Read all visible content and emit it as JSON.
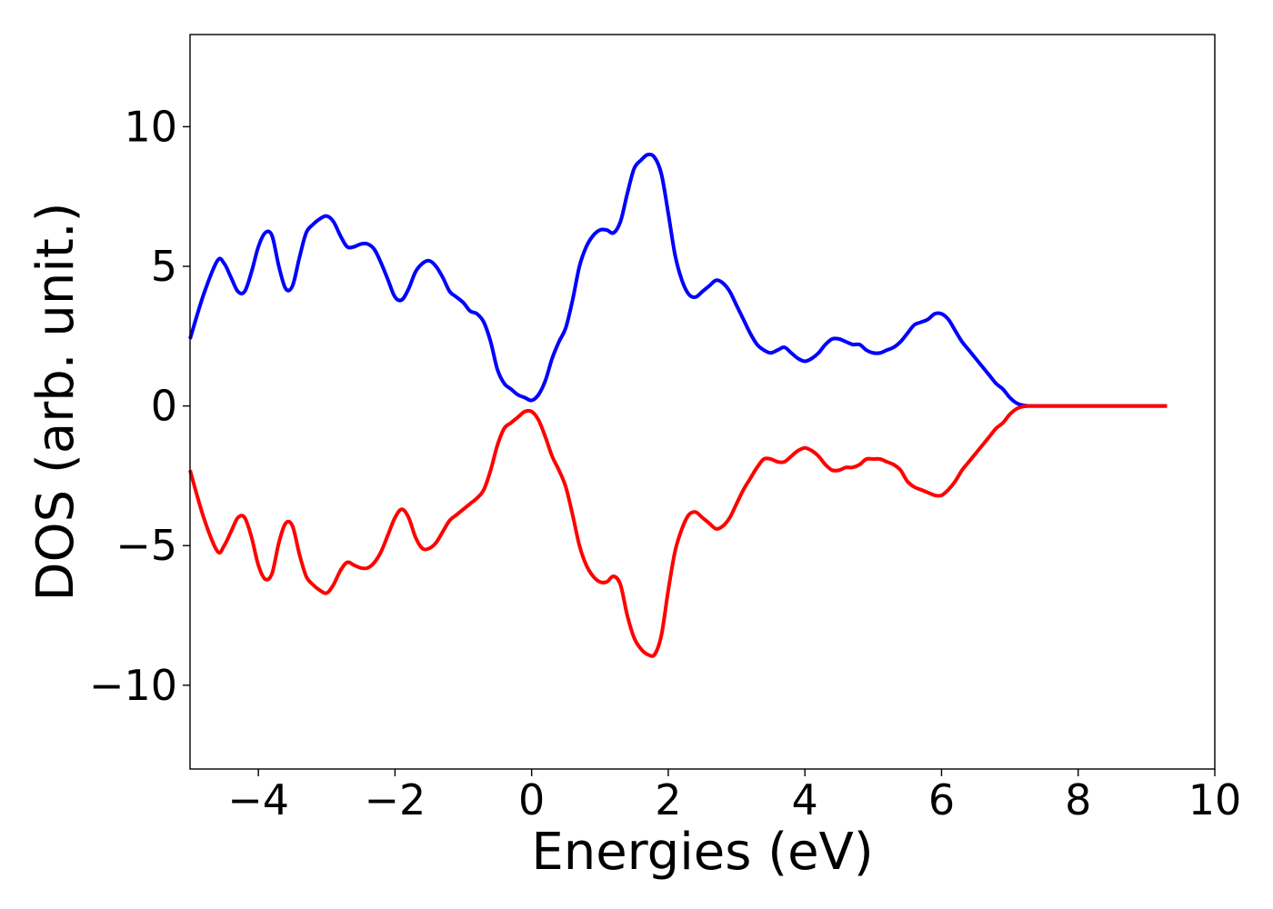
{
  "chart_data": {
    "type": "line",
    "title": "",
    "xlabel": "Energies (eV)",
    "ylabel": "DOS (arb. unit.)",
    "xlim": [
      -5,
      10
    ],
    "ylim": [
      -13,
      13.3
    ],
    "grid": false,
    "legend": "none",
    "x_ticks": [
      -4,
      -2,
      0,
      2,
      4,
      6,
      8,
      10
    ],
    "x_tick_labels": [
      "−4",
      "−2",
      "0",
      "2",
      "4",
      "6",
      "8",
      "10"
    ],
    "y_ticks": [
      -10,
      -5,
      0,
      5,
      10
    ],
    "y_tick_labels": [
      "−10",
      "−5",
      "0",
      "5",
      "10"
    ],
    "series": [
      {
        "color": "#0000ff",
        "points": [
          [
            -5.0,
            2.4
          ],
          [
            -4.8,
            4.0
          ],
          [
            -4.6,
            5.2
          ],
          [
            -4.5,
            5.1
          ],
          [
            -4.4,
            4.6
          ],
          [
            -4.3,
            4.1
          ],
          [
            -4.2,
            4.1
          ],
          [
            -4.1,
            4.8
          ],
          [
            -4.0,
            5.7
          ],
          [
            -3.9,
            6.2
          ],
          [
            -3.8,
            6.1
          ],
          [
            -3.7,
            5.0
          ],
          [
            -3.6,
            4.2
          ],
          [
            -3.5,
            4.3
          ],
          [
            -3.4,
            5.3
          ],
          [
            -3.3,
            6.2
          ],
          [
            -3.2,
            6.5
          ],
          [
            -3.1,
            6.7
          ],
          [
            -3.0,
            6.8
          ],
          [
            -2.9,
            6.6
          ],
          [
            -2.8,
            6.1
          ],
          [
            -2.7,
            5.7
          ],
          [
            -2.6,
            5.7
          ],
          [
            -2.5,
            5.8
          ],
          [
            -2.4,
            5.8
          ],
          [
            -2.3,
            5.6
          ],
          [
            -2.2,
            5.1
          ],
          [
            -2.1,
            4.5
          ],
          [
            -2.0,
            3.9
          ],
          [
            -1.9,
            3.8
          ],
          [
            -1.8,
            4.2
          ],
          [
            -1.7,
            4.8
          ],
          [
            -1.6,
            5.1
          ],
          [
            -1.5,
            5.2
          ],
          [
            -1.4,
            5.0
          ],
          [
            -1.3,
            4.6
          ],
          [
            -1.2,
            4.1
          ],
          [
            -1.1,
            3.9
          ],
          [
            -1.0,
            3.7
          ],
          [
            -0.9,
            3.4
          ],
          [
            -0.8,
            3.3
          ],
          [
            -0.7,
            3.0
          ],
          [
            -0.6,
            2.3
          ],
          [
            -0.5,
            1.3
          ],
          [
            -0.4,
            0.8
          ],
          [
            -0.3,
            0.6
          ],
          [
            -0.2,
            0.4
          ],
          [
            -0.1,
            0.3
          ],
          [
            0.0,
            0.2
          ],
          [
            0.1,
            0.4
          ],
          [
            0.2,
            0.9
          ],
          [
            0.3,
            1.7
          ],
          [
            0.4,
            2.3
          ],
          [
            0.5,
            2.8
          ],
          [
            0.6,
            3.8
          ],
          [
            0.7,
            5.0
          ],
          [
            0.8,
            5.7
          ],
          [
            0.9,
            6.1
          ],
          [
            1.0,
            6.3
          ],
          [
            1.1,
            6.3
          ],
          [
            1.2,
            6.2
          ],
          [
            1.3,
            6.6
          ],
          [
            1.4,
            7.6
          ],
          [
            1.5,
            8.5
          ],
          [
            1.6,
            8.8
          ],
          [
            1.7,
            9.0
          ],
          [
            1.8,
            8.9
          ],
          [
            1.9,
            8.3
          ],
          [
            2.0,
            6.9
          ],
          [
            2.1,
            5.4
          ],
          [
            2.2,
            4.5
          ],
          [
            2.3,
            4.0
          ],
          [
            2.4,
            3.9
          ],
          [
            2.5,
            4.1
          ],
          [
            2.6,
            4.3
          ],
          [
            2.7,
            4.5
          ],
          [
            2.8,
            4.4
          ],
          [
            2.9,
            4.1
          ],
          [
            3.0,
            3.6
          ],
          [
            3.1,
            3.1
          ],
          [
            3.2,
            2.6
          ],
          [
            3.3,
            2.2
          ],
          [
            3.4,
            2.0
          ],
          [
            3.5,
            1.9
          ],
          [
            3.6,
            2.0
          ],
          [
            3.7,
            2.1
          ],
          [
            3.8,
            1.9
          ],
          [
            3.9,
            1.7
          ],
          [
            4.0,
            1.6
          ],
          [
            4.1,
            1.7
          ],
          [
            4.2,
            1.9
          ],
          [
            4.3,
            2.2
          ],
          [
            4.4,
            2.4
          ],
          [
            4.5,
            2.4
          ],
          [
            4.6,
            2.3
          ],
          [
            4.7,
            2.2
          ],
          [
            4.8,
            2.2
          ],
          [
            4.9,
            2.0
          ],
          [
            5.0,
            1.9
          ],
          [
            5.1,
            1.9
          ],
          [
            5.2,
            2.0
          ],
          [
            5.3,
            2.1
          ],
          [
            5.4,
            2.3
          ],
          [
            5.5,
            2.6
          ],
          [
            5.6,
            2.9
          ],
          [
            5.7,
            3.0
          ],
          [
            5.8,
            3.1
          ],
          [
            5.9,
            3.3
          ],
          [
            6.0,
            3.3
          ],
          [
            6.1,
            3.1
          ],
          [
            6.2,
            2.7
          ],
          [
            6.3,
            2.3
          ],
          [
            6.4,
            2.0
          ],
          [
            6.5,
            1.7
          ],
          [
            6.6,
            1.4
          ],
          [
            6.7,
            1.1
          ],
          [
            6.8,
            0.8
          ],
          [
            6.9,
            0.6
          ],
          [
            7.0,
            0.3
          ],
          [
            7.1,
            0.1
          ],
          [
            7.2,
            0.02
          ],
          [
            7.3,
            0.0
          ],
          [
            7.5,
            0.0
          ],
          [
            8.0,
            0.0
          ],
          [
            8.5,
            0.0
          ],
          [
            9.0,
            0.0
          ],
          [
            9.3,
            0.0
          ]
        ]
      },
      {
        "color": "#ff0000",
        "points": [
          [
            -5.0,
            -2.3
          ],
          [
            -4.8,
            -4.0
          ],
          [
            -4.6,
            -5.2
          ],
          [
            -4.5,
            -5.0
          ],
          [
            -4.4,
            -4.5
          ],
          [
            -4.3,
            -4.0
          ],
          [
            -4.2,
            -4.0
          ],
          [
            -4.1,
            -4.7
          ],
          [
            -4.0,
            -5.7
          ],
          [
            -3.9,
            -6.2
          ],
          [
            -3.8,
            -6.0
          ],
          [
            -3.7,
            -4.9
          ],
          [
            -3.6,
            -4.2
          ],
          [
            -3.5,
            -4.3
          ],
          [
            -3.4,
            -5.3
          ],
          [
            -3.3,
            -6.1
          ],
          [
            -3.2,
            -6.4
          ],
          [
            -3.1,
            -6.6
          ],
          [
            -3.0,
            -6.7
          ],
          [
            -2.9,
            -6.4
          ],
          [
            -2.8,
            -5.9
          ],
          [
            -2.7,
            -5.6
          ],
          [
            -2.6,
            -5.7
          ],
          [
            -2.5,
            -5.8
          ],
          [
            -2.4,
            -5.8
          ],
          [
            -2.3,
            -5.6
          ],
          [
            -2.2,
            -5.2
          ],
          [
            -2.1,
            -4.6
          ],
          [
            -2.0,
            -4.0
          ],
          [
            -1.9,
            -3.7
          ],
          [
            -1.8,
            -4.0
          ],
          [
            -1.7,
            -4.7
          ],
          [
            -1.6,
            -5.1
          ],
          [
            -1.5,
            -5.1
          ],
          [
            -1.4,
            -4.9
          ],
          [
            -1.3,
            -4.5
          ],
          [
            -1.2,
            -4.1
          ],
          [
            -1.1,
            -3.9
          ],
          [
            -1.0,
            -3.7
          ],
          [
            -0.9,
            -3.5
          ],
          [
            -0.8,
            -3.3
          ],
          [
            -0.7,
            -3.0
          ],
          [
            -0.6,
            -2.3
          ],
          [
            -0.5,
            -1.4
          ],
          [
            -0.4,
            -0.8
          ],
          [
            -0.3,
            -0.6
          ],
          [
            -0.2,
            -0.4
          ],
          [
            -0.1,
            -0.2
          ],
          [
            0.0,
            -0.2
          ],
          [
            0.1,
            -0.5
          ],
          [
            0.2,
            -1.1
          ],
          [
            0.3,
            -1.8
          ],
          [
            0.4,
            -2.3
          ],
          [
            0.5,
            -2.9
          ],
          [
            0.6,
            -3.9
          ],
          [
            0.7,
            -5.0
          ],
          [
            0.8,
            -5.7
          ],
          [
            0.9,
            -6.1
          ],
          [
            1.0,
            -6.3
          ],
          [
            1.1,
            -6.3
          ],
          [
            1.2,
            -6.1
          ],
          [
            1.3,
            -6.4
          ],
          [
            1.4,
            -7.5
          ],
          [
            1.5,
            -8.3
          ],
          [
            1.6,
            -8.7
          ],
          [
            1.7,
            -8.9
          ],
          [
            1.8,
            -8.9
          ],
          [
            1.9,
            -8.2
          ],
          [
            2.0,
            -6.6
          ],
          [
            2.1,
            -5.2
          ],
          [
            2.2,
            -4.4
          ],
          [
            2.3,
            -3.9
          ],
          [
            2.4,
            -3.8
          ],
          [
            2.5,
            -4.0
          ],
          [
            2.6,
            -4.2
          ],
          [
            2.7,
            -4.4
          ],
          [
            2.8,
            -4.3
          ],
          [
            2.9,
            -4.0
          ],
          [
            3.0,
            -3.5
          ],
          [
            3.1,
            -3.0
          ],
          [
            3.2,
            -2.6
          ],
          [
            3.3,
            -2.2
          ],
          [
            3.4,
            -1.9
          ],
          [
            3.5,
            -1.9
          ],
          [
            3.6,
            -2.0
          ],
          [
            3.7,
            -2.0
          ],
          [
            3.8,
            -1.8
          ],
          [
            3.9,
            -1.6
          ],
          [
            4.0,
            -1.5
          ],
          [
            4.1,
            -1.6
          ],
          [
            4.2,
            -1.8
          ],
          [
            4.3,
            -2.1
          ],
          [
            4.4,
            -2.3
          ],
          [
            4.5,
            -2.3
          ],
          [
            4.6,
            -2.2
          ],
          [
            4.7,
            -2.2
          ],
          [
            4.8,
            -2.1
          ],
          [
            4.9,
            -1.9
          ],
          [
            5.0,
            -1.9
          ],
          [
            5.1,
            -1.9
          ],
          [
            5.2,
            -2.0
          ],
          [
            5.3,
            -2.1
          ],
          [
            5.4,
            -2.3
          ],
          [
            5.5,
            -2.7
          ],
          [
            5.6,
            -2.9
          ],
          [
            5.7,
            -3.0
          ],
          [
            5.8,
            -3.1
          ],
          [
            5.9,
            -3.2
          ],
          [
            6.0,
            -3.2
          ],
          [
            6.1,
            -3.0
          ],
          [
            6.2,
            -2.7
          ],
          [
            6.3,
            -2.3
          ],
          [
            6.4,
            -2.0
          ],
          [
            6.5,
            -1.7
          ],
          [
            6.6,
            -1.4
          ],
          [
            6.7,
            -1.1
          ],
          [
            6.8,
            -0.8
          ],
          [
            6.9,
            -0.6
          ],
          [
            7.0,
            -0.3
          ],
          [
            7.1,
            -0.1
          ],
          [
            7.2,
            -0.02
          ],
          [
            7.3,
            0.0
          ],
          [
            7.5,
            0.0
          ],
          [
            8.0,
            0.0
          ],
          [
            8.5,
            0.0
          ],
          [
            9.0,
            0.0
          ],
          [
            9.3,
            0.0
          ]
        ]
      }
    ]
  }
}
